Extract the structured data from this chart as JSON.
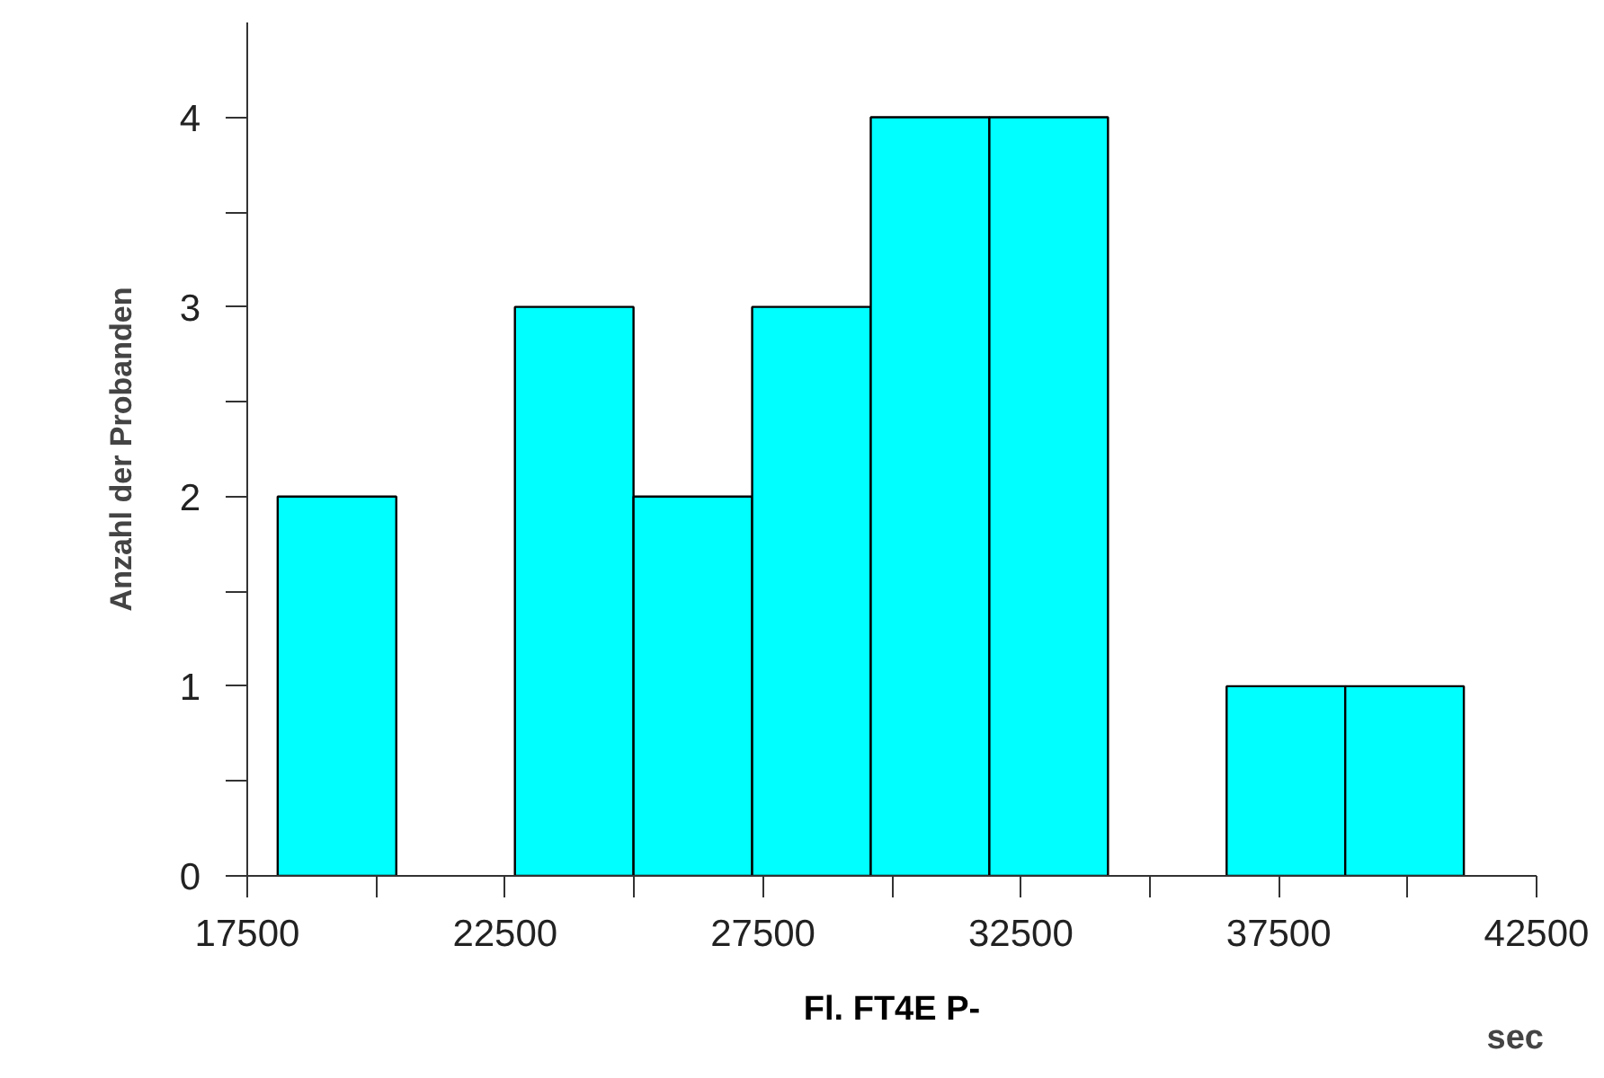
{
  "chart_data": {
    "type": "histogram",
    "xlabel": "Fl. FT4E P-",
    "ylabel": "Anzahl der Probanden",
    "annotations": [
      "sec"
    ],
    "bins": [
      18090,
      20390,
      22690,
      24990,
      27290,
      29590,
      31890,
      34190,
      36490,
      38790,
      41090
    ],
    "values": [
      2,
      0,
      3,
      2,
      3,
      4,
      4,
      0,
      1,
      1
    ],
    "color": "#00ffff",
    "xlim": [
      17500,
      42500
    ],
    "xticks": [
      17500,
      {
        "value": 20000,
        "label": null
      },
      22500,
      {
        "value": 25000,
        "label": null
      },
      27500,
      {
        "value": 30000,
        "label": null
      },
      32500,
      {
        "value": 35000,
        "label": null
      },
      37500,
      {
        "value": 40000,
        "label": null
      },
      42500
    ],
    "ylim": [
      0,
      4.5
    ],
    "yticks": [
      0,
      {
        "value": 0.5,
        "label": null
      },
      1,
      {
        "value": 1.5,
        "label": null
      },
      2,
      {
        "value": 2.5,
        "label": null
      },
      3,
      {
        "value": 3.5,
        "label": null
      },
      4
    ],
    "grid": false
  }
}
